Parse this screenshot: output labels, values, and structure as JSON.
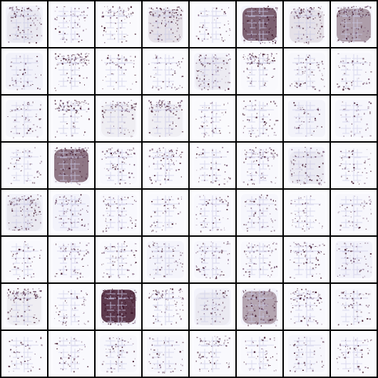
{
  "grid": {
    "rows": 8,
    "cols": 8,
    "background": "#000000",
    "tile_background": "#fbfbfe",
    "ink_colors": {
      "dark": "#3a0f24",
      "mid": "#7a5a78",
      "light": "#c9c8e6",
      "haze": "#d7d6ee"
    },
    "tiles": [
      [
        {
          "density": 0.35,
          "haze": 0.25,
          "blob": 0.05,
          "top": 0.3
        },
        {
          "density": 0.2,
          "haze": 0.08,
          "blob": 0.0,
          "top": 0.1
        },
        {
          "density": 0.25,
          "haze": 0.03,
          "blob": 0.0,
          "top": 0.6
        },
        {
          "density": 0.45,
          "haze": 0.1,
          "blob": 0.1,
          "top": 0.4
        },
        {
          "density": 0.12,
          "haze": 0.05,
          "blob": 0.0,
          "top": 0.05
        },
        {
          "density": 0.6,
          "haze": 0.2,
          "blob": 0.75,
          "top": 0.1
        },
        {
          "density": 0.45,
          "haze": 0.1,
          "blob": 0.1,
          "top": 0.3
        },
        {
          "density": 0.55,
          "haze": 0.18,
          "blob": 0.45,
          "top": 0.5
        }
      ],
      [
        {
          "density": 0.1,
          "haze": 0.25,
          "blob": 0.0,
          "top": 0.0
        },
        {
          "density": 0.4,
          "haze": 0.05,
          "blob": 0.0,
          "top": 0.7
        },
        {
          "density": 0.15,
          "haze": 0.03,
          "blob": 0.0,
          "top": 0.05
        },
        {
          "density": 0.15,
          "haze": 0.05,
          "blob": 0.0,
          "top": 0.05
        },
        {
          "density": 0.35,
          "haze": 0.18,
          "blob": 0.05,
          "top": 0.2
        },
        {
          "density": 0.4,
          "haze": 0.05,
          "blob": 0.0,
          "top": 0.5
        },
        {
          "density": 0.25,
          "haze": 0.1,
          "blob": 0.0,
          "top": 0.1
        },
        {
          "density": 0.15,
          "haze": 0.1,
          "blob": 0.0,
          "top": 0.05
        }
      ],
      [
        {
          "density": 0.15,
          "haze": 0.15,
          "blob": 0.0,
          "top": 0.05
        },
        {
          "density": 0.4,
          "haze": 0.05,
          "blob": 0.0,
          "top": 0.7
        },
        {
          "density": 0.3,
          "haze": 0.1,
          "blob": 0.05,
          "top": 0.6
        },
        {
          "density": 0.4,
          "haze": 0.08,
          "blob": 0.05,
          "top": 0.8
        },
        {
          "density": 0.15,
          "haze": 0.03,
          "blob": 0.0,
          "top": 0.05
        },
        {
          "density": 0.25,
          "haze": 0.05,
          "blob": 0.0,
          "top": 0.15
        },
        {
          "density": 0.1,
          "haze": 0.22,
          "blob": 0.0,
          "top": 0.0
        },
        {
          "density": 0.1,
          "haze": 0.12,
          "blob": 0.0,
          "top": 0.0
        }
      ],
      [
        {
          "density": 0.12,
          "haze": 0.08,
          "blob": 0.0,
          "top": 0.1
        },
        {
          "density": 0.55,
          "haze": 0.15,
          "blob": 0.65,
          "top": 0.5
        },
        {
          "density": 0.3,
          "haze": 0.08,
          "blob": 0.0,
          "top": 0.3
        },
        {
          "density": 0.3,
          "haze": 0.05,
          "blob": 0.0,
          "top": 0.4
        },
        {
          "density": 0.15,
          "haze": 0.06,
          "blob": 0.0,
          "top": 0.05
        },
        {
          "density": 0.35,
          "haze": 0.08,
          "blob": 0.0,
          "top": 0.4
        },
        {
          "density": 0.3,
          "haze": 0.2,
          "blob": 0.05,
          "top": 0.1
        },
        {
          "density": 0.15,
          "haze": 0.05,
          "blob": 0.0,
          "top": 0.05
        }
      ],
      [
        {
          "density": 0.4,
          "haze": 0.25,
          "blob": 0.05,
          "top": 0.2
        },
        {
          "density": 0.3,
          "haze": 0.2,
          "blob": 0.0,
          "top": 0.2
        },
        {
          "density": 0.2,
          "haze": 0.08,
          "blob": 0.0,
          "top": 0.1
        },
        {
          "density": 0.12,
          "haze": 0.06,
          "blob": 0.0,
          "top": 0.0
        },
        {
          "density": 0.2,
          "haze": 0.08,
          "blob": 0.0,
          "top": 0.1
        },
        {
          "density": 0.2,
          "haze": 0.12,
          "blob": 0.0,
          "top": 0.05
        },
        {
          "density": 0.15,
          "haze": 0.05,
          "blob": 0.0,
          "top": 0.05
        },
        {
          "density": 0.15,
          "haze": 0.1,
          "blob": 0.0,
          "top": 0.05
        }
      ],
      [
        {
          "density": 0.12,
          "haze": 0.06,
          "blob": 0.0,
          "top": 0.05
        },
        {
          "density": 0.2,
          "haze": 0.08,
          "blob": 0.0,
          "top": 0.1
        },
        {
          "density": 0.25,
          "haze": 0.05,
          "blob": 0.0,
          "top": 0.2
        },
        {
          "density": 0.2,
          "haze": 0.18,
          "blob": 0.0,
          "top": 0.1
        },
        {
          "density": 0.25,
          "haze": 0.12,
          "blob": 0.0,
          "top": 0.3
        },
        {
          "density": 0.25,
          "haze": 0.08,
          "blob": 0.0,
          "top": 0.3
        },
        {
          "density": 0.3,
          "haze": 0.08,
          "blob": 0.0,
          "top": 0.4
        },
        {
          "density": 0.2,
          "haze": 0.25,
          "blob": 0.0,
          "top": 0.05
        }
      ],
      [
        {
          "density": 0.45,
          "haze": 0.1,
          "blob": 0.05,
          "top": 0.6
        },
        {
          "density": 0.15,
          "haze": 0.05,
          "blob": 0.0,
          "top": 0.05
        },
        {
          "density": 0.7,
          "haze": 0.2,
          "blob": 0.95,
          "top": 0.2
        },
        {
          "density": 0.35,
          "haze": 0.05,
          "blob": 0.0,
          "top": 0.6
        },
        {
          "density": 0.15,
          "haze": 0.2,
          "blob": 0.05,
          "top": 0.05
        },
        {
          "density": 0.5,
          "haze": 0.2,
          "blob": 0.4,
          "top": 0.1
        },
        {
          "density": 0.35,
          "haze": 0.08,
          "blob": 0.0,
          "top": 0.3
        },
        {
          "density": 0.2,
          "haze": 0.1,
          "blob": 0.0,
          "top": 0.1
        }
      ],
      [
        {
          "density": 0.15,
          "haze": 0.05,
          "blob": 0.0,
          "top": 0.05
        },
        {
          "density": 0.12,
          "haze": 0.05,
          "blob": 0.0,
          "top": 0.0
        },
        {
          "density": 0.15,
          "haze": 0.1,
          "blob": 0.0,
          "top": 0.05
        },
        {
          "density": 0.15,
          "haze": 0.1,
          "blob": 0.0,
          "top": 0.05
        },
        {
          "density": 0.25,
          "haze": 0.06,
          "blob": 0.0,
          "top": 0.2
        },
        {
          "density": 0.12,
          "haze": 0.05,
          "blob": 0.0,
          "top": 0.0
        },
        {
          "density": 0.12,
          "haze": 0.12,
          "blob": 0.0,
          "top": 0.0
        },
        {
          "density": 0.2,
          "haze": 0.06,
          "blob": 0.0,
          "top": 0.1
        }
      ]
    ]
  }
}
